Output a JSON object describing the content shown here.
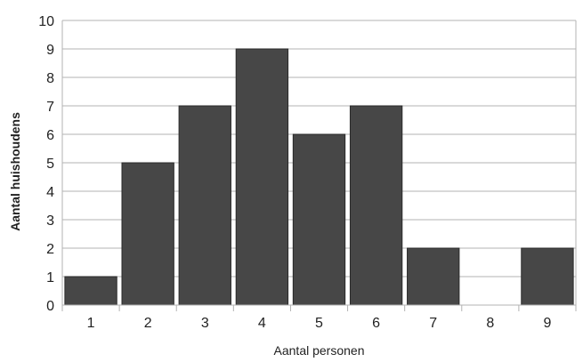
{
  "chart_data": {
    "type": "bar",
    "categories": [
      "1",
      "2",
      "3",
      "4",
      "5",
      "6",
      "7",
      "8",
      "9"
    ],
    "values": [
      1,
      5,
      7,
      9,
      6,
      7,
      2,
      0,
      2
    ],
    "title": "",
    "xlabel": "Aantal personen",
    "ylabel": "Aantal huishoudens",
    "ylim": [
      0,
      10
    ],
    "yticks": [
      "0",
      "1",
      "2",
      "3",
      "4",
      "5",
      "6",
      "7",
      "8",
      "9",
      "10"
    ],
    "grid": true,
    "legend": "none",
    "colors": {
      "bar": "#474747",
      "bar_edge": "#2a2a2a",
      "grid": "#b3b3b3",
      "axis": "#b3b3b3",
      "text": "#222222"
    }
  }
}
